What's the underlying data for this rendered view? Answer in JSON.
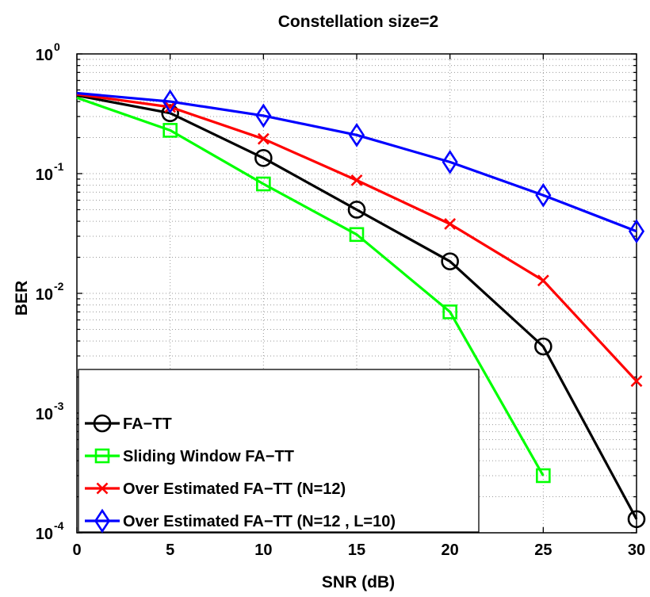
{
  "chart_data": {
    "type": "line",
    "title": "Constellation size=2",
    "xlabel": "SNR (dB)",
    "ylabel": "BER",
    "xlim": [
      0,
      30
    ],
    "ylim": [
      0.0001,
      1
    ],
    "yscale": "log",
    "grid": true,
    "legend_position": "bottom-left",
    "xticks": [
      0,
      5,
      10,
      15,
      20,
      25,
      30
    ],
    "xtick_labels": [
      "0",
      "5",
      "10",
      "15",
      "20",
      "25",
      "30"
    ],
    "yticks": [
      1,
      0.1,
      0.01,
      0.001,
      0.0001
    ],
    "ytick_labels": [
      {
        "base": "10",
        "exp": "0"
      },
      {
        "base": "10",
        "exp": "-1"
      },
      {
        "base": "10",
        "exp": "-2"
      },
      {
        "base": "10",
        "exp": "-3"
      },
      {
        "base": "10",
        "exp": "-4"
      }
    ],
    "series": [
      {
        "name": "FA−TT",
        "color": "#000000",
        "marker": "circle",
        "x": [
          0,
          5,
          10,
          15,
          20,
          25,
          30
        ],
        "y": [
          0.45,
          0.32,
          0.135,
          0.05,
          0.0185,
          0.0036,
          0.00013
        ]
      },
      {
        "name": "Sliding Window FA−TT",
        "color": "#00ff00",
        "marker": "square",
        "x": [
          0,
          5,
          10,
          15,
          20,
          25
        ],
        "y": [
          0.43,
          0.23,
          0.082,
          0.031,
          0.007,
          0.0003
        ]
      },
      {
        "name": "Over Estimated FA−TT (N=12)",
        "color": "#ff0000",
        "marker": "x",
        "x": [
          0,
          5,
          10,
          15,
          20,
          25,
          30
        ],
        "y": [
          0.46,
          0.36,
          0.195,
          0.088,
          0.038,
          0.0128,
          0.00185
        ]
      },
      {
        "name": "Over Estimated FA−TT (N=12 , L=10)",
        "color": "#0000ff",
        "marker": "diamond",
        "x": [
          0,
          5,
          10,
          15,
          20,
          25,
          30
        ],
        "y": [
          0.47,
          0.4,
          0.305,
          0.21,
          0.125,
          0.066,
          0.033
        ]
      }
    ]
  }
}
